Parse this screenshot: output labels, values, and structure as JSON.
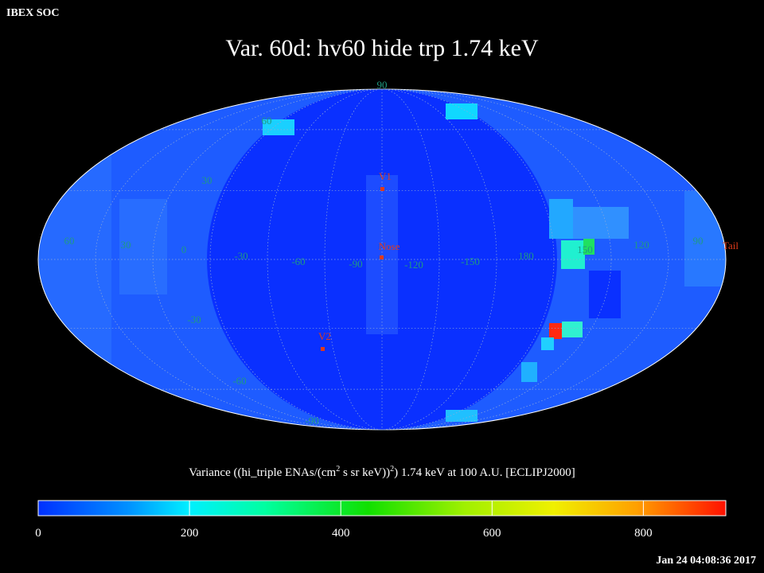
{
  "header": {
    "left": "IBEX SOC",
    "title": "Var. 60d: hv60 hide trp 1.74 keV"
  },
  "map": {
    "lat_labels": [
      "90",
      "60",
      "30",
      "-30",
      "-60",
      "-90"
    ],
    "lon_labels": [
      "60",
      "30",
      "0",
      "-30",
      "-60",
      "-90",
      "-120",
      "-150",
      "180",
      "150",
      "120",
      "90"
    ],
    "markers": [
      "V1",
      "Nose",
      "V2",
      "Tail"
    ]
  },
  "colorbar": {
    "caption_parts": [
      "Variance ((hi_triple ENAs/(cm",
      "2",
      " s sr keV))",
      "2",
      ") 1.74 keV at 100 A.U. [ECLIPJ2000]"
    ],
    "range": [
      0,
      909
    ],
    "ticks": [
      0,
      200,
      400,
      600,
      800
    ]
  },
  "footer": {
    "timestamp": "Jan 24 04:08:36 2017"
  }
}
